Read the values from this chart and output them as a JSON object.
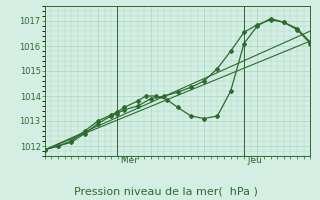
{
  "bg_color": "#d4eee4",
  "grid_color": "#a8d4c0",
  "line_color": "#2d6b2d",
  "text_color": "#2d6b2d",
  "xlabel": "Pression niveau de la mer(  hPa )",
  "xlabel_fontsize": 8,
  "yticks": [
    1012,
    1013,
    1014,
    1015,
    1016,
    1017
  ],
  "ylim": [
    1011.6,
    1017.6
  ],
  "xlim": [
    0,
    100
  ],
  "mer_x": 27,
  "jeu_x": 75,
  "lines": [
    {
      "x": [
        0,
        100
      ],
      "y": [
        1011.85,
        1016.2
      ],
      "marker": null,
      "lw": 0.8
    },
    {
      "x": [
        0,
        100
      ],
      "y": [
        1011.85,
        1016.6
      ],
      "marker": null,
      "lw": 0.8
    },
    {
      "x": [
        0,
        5,
        10,
        15,
        20,
        25,
        27,
        30,
        35,
        40,
        45,
        50,
        55,
        60,
        65,
        70,
        75,
        80,
        85,
        90,
        95,
        100
      ],
      "y": [
        1011.85,
        1012.0,
        1012.15,
        1012.5,
        1012.9,
        1013.2,
        1013.3,
        1013.45,
        1013.6,
        1013.9,
        1014.0,
        1014.15,
        1014.35,
        1014.6,
        1015.1,
        1015.8,
        1016.55,
        1016.85,
        1017.05,
        1016.95,
        1016.7,
        1016.15
      ],
      "marker": "D",
      "lw": 0.9,
      "ms": 2.0
    },
    {
      "x": [
        0,
        5,
        10,
        15,
        20,
        25,
        27,
        30,
        35,
        38,
        42,
        46,
        50,
        55,
        60,
        65,
        70,
        75,
        80,
        85,
        90,
        95,
        100
      ],
      "y": [
        1011.85,
        1012.0,
        1012.2,
        1012.6,
        1013.0,
        1013.25,
        1013.35,
        1013.55,
        1013.8,
        1014.0,
        1014.0,
        1013.85,
        1013.55,
        1013.2,
        1013.1,
        1013.2,
        1014.2,
        1016.1,
        1016.8,
        1017.1,
        1016.95,
        1016.65,
        1016.1
      ],
      "marker": "D",
      "lw": 0.9,
      "ms": 2.0
    }
  ]
}
